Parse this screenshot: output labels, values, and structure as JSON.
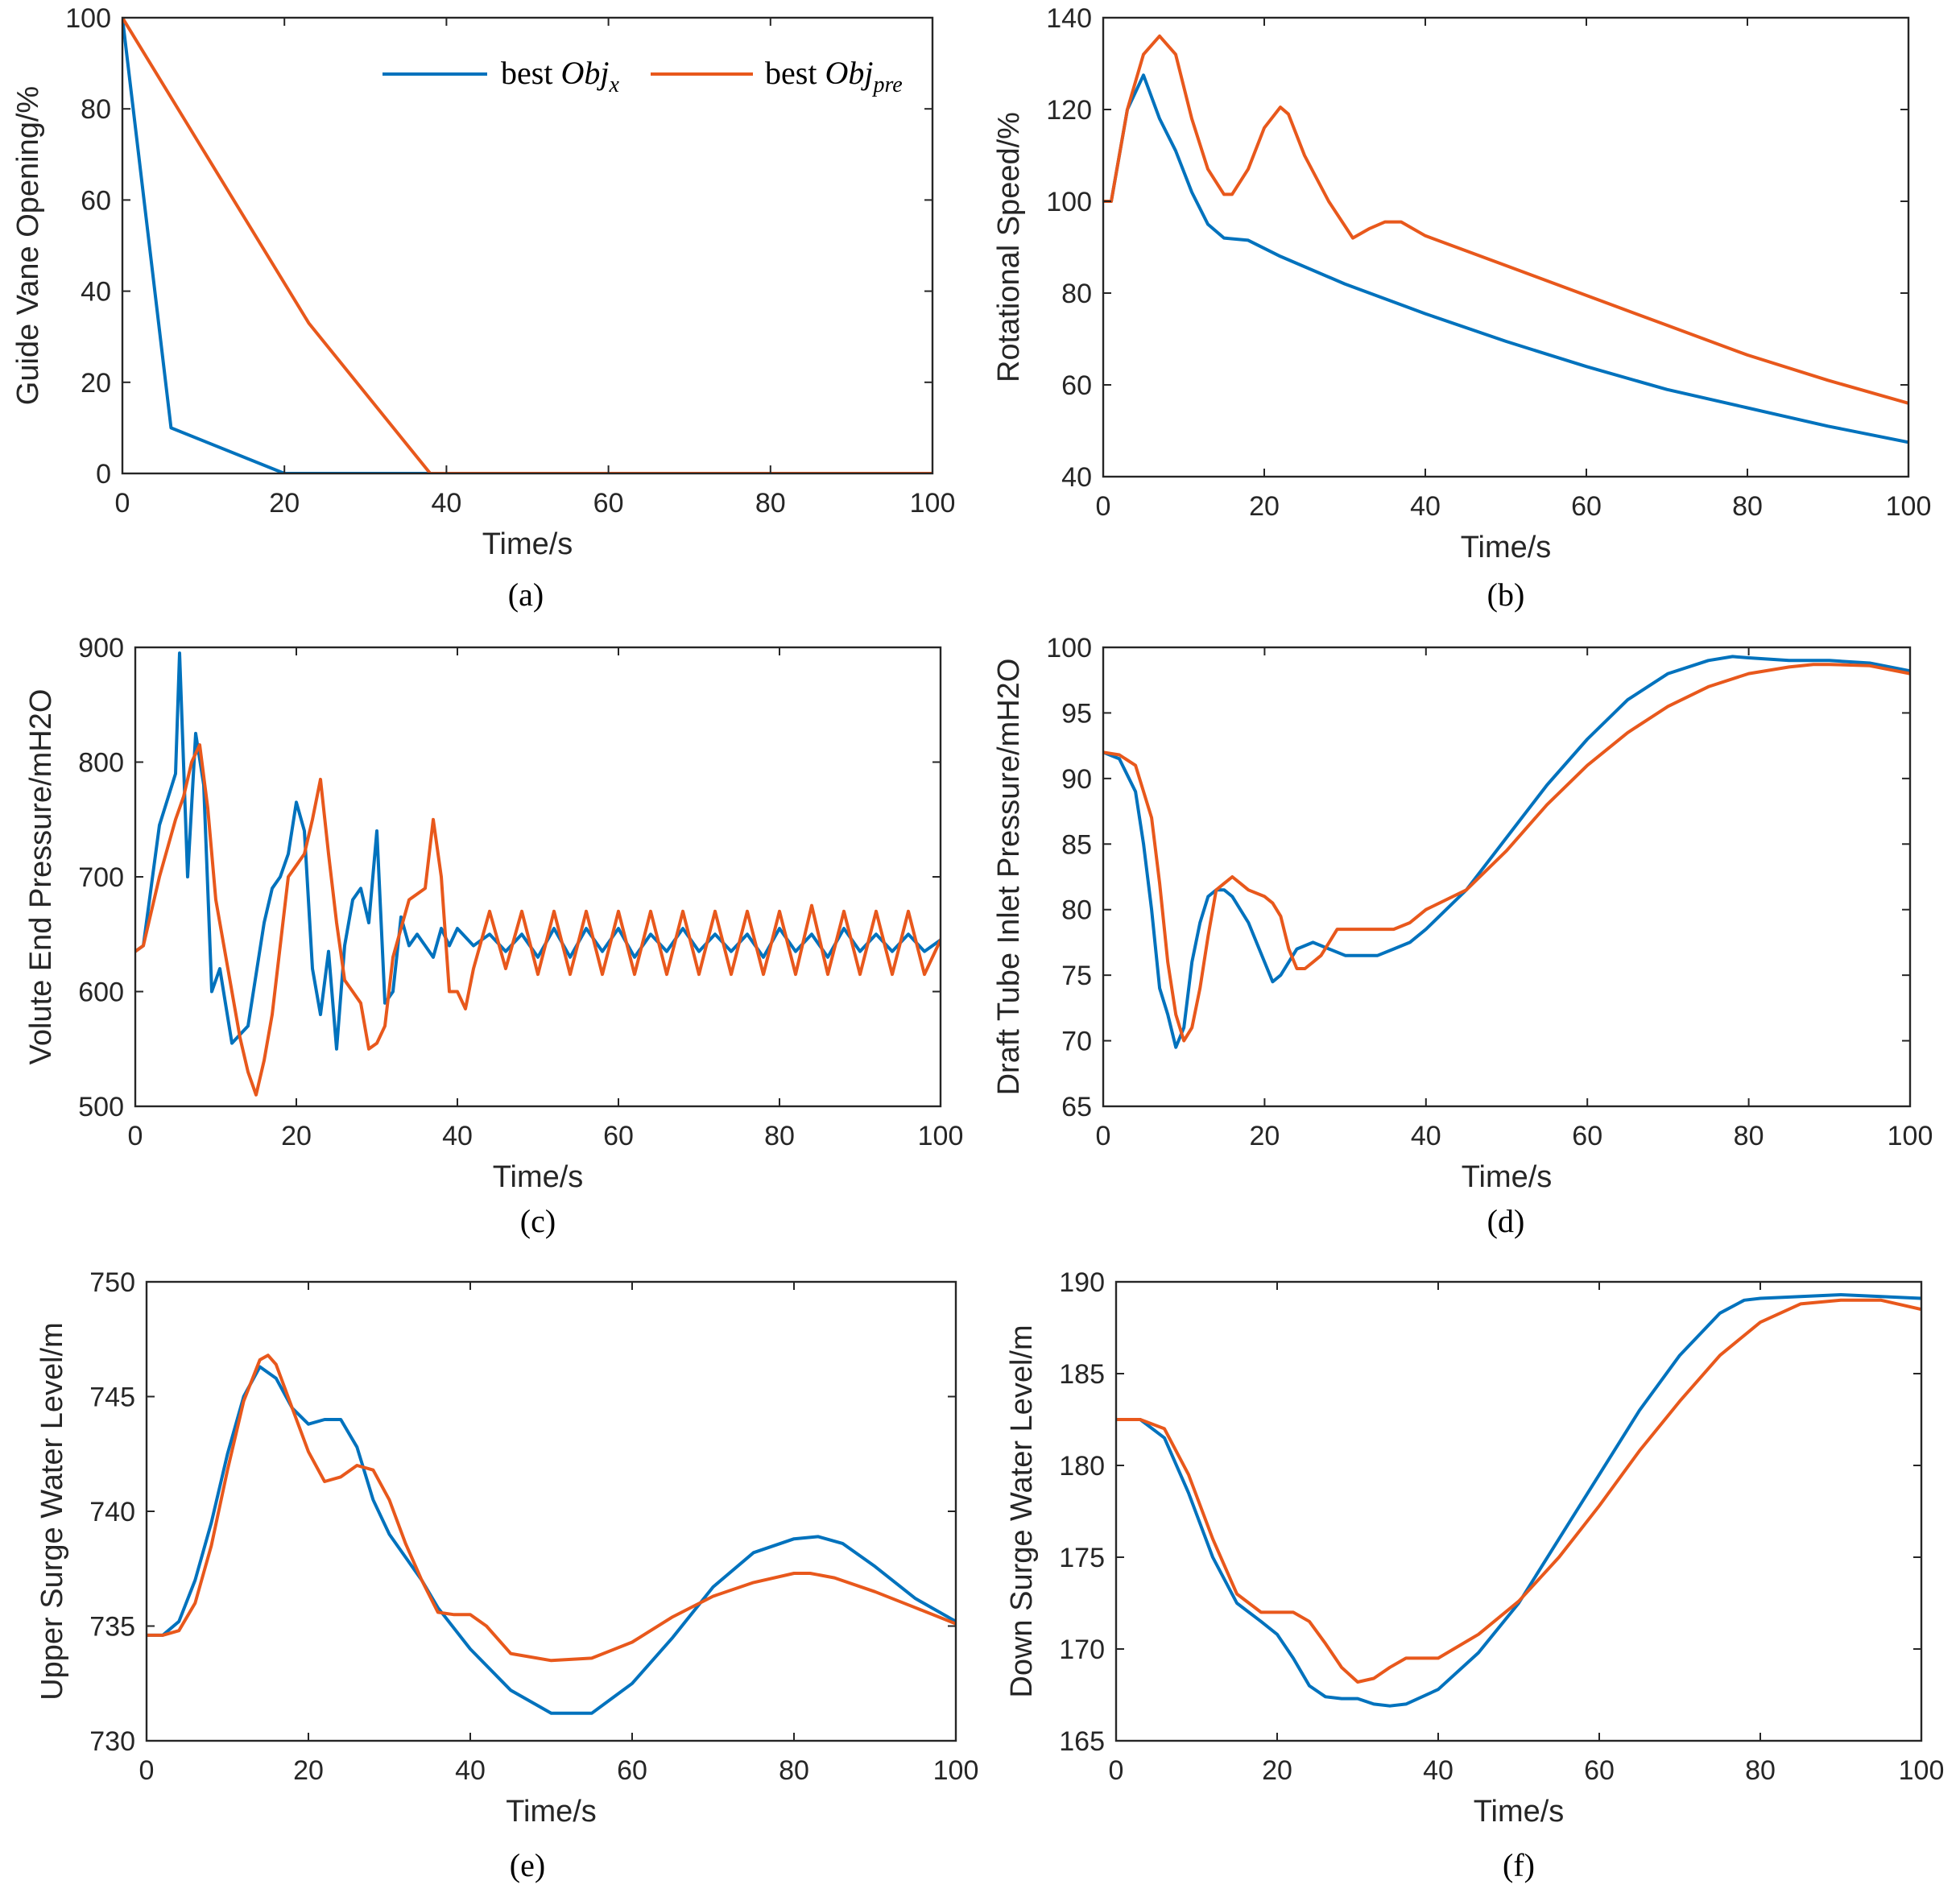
{
  "legend": {
    "series1": {
      "prefix": "best",
      "obj": "Obj",
      "sub": "x"
    },
    "series2": {
      "prefix": "best",
      "obj": "Obj",
      "sub": "pre"
    }
  },
  "colors": {
    "series1": "#0072bd",
    "series2": "#e8581c"
  },
  "chart_data": [
    {
      "id": "a",
      "panel_label": "(a)",
      "type": "line",
      "xlabel": "Time/s",
      "ylabel": "Guide Vane Opening/%",
      "xlim": [
        0,
        100
      ],
      "ylim": [
        0,
        100
      ],
      "xticks": [
        0,
        20,
        40,
        60,
        80,
        100
      ],
      "yticks": [
        0,
        20,
        40,
        60,
        80,
        100
      ],
      "series": [
        {
          "name": "best Obj_x",
          "x": [
            0,
            6,
            20,
            100
          ],
          "y": [
            100,
            10,
            0,
            0
          ]
        },
        {
          "name": "best Obj_pre",
          "x": [
            0,
            23,
            38,
            100
          ],
          "y": [
            100,
            33,
            0,
            0
          ]
        }
      ]
    },
    {
      "id": "b",
      "panel_label": "(b)",
      "type": "line",
      "xlabel": "Time/s",
      "ylabel": "Rotational Speed/%",
      "xlim": [
        0,
        100
      ],
      "ylim": [
        40,
        140
      ],
      "xticks": [
        0,
        20,
        40,
        60,
        80,
        100
      ],
      "yticks": [
        40,
        60,
        80,
        100,
        120,
        140
      ],
      "series": [
        {
          "name": "best Obj_x",
          "x": [
            0,
            1,
            3,
            5,
            7,
            9,
            11,
            13,
            15,
            18,
            22,
            30,
            40,
            50,
            60,
            70,
            80,
            90,
            100
          ],
          "y": [
            100,
            100,
            120,
            127.5,
            118,
            111,
            102,
            95,
            92,
            91.5,
            88,
            82,
            75.5,
            69.5,
            64,
            59,
            55,
            51,
            47.5
          ]
        },
        {
          "name": "best Obj_pre",
          "x": [
            0,
            1,
            3,
            5,
            7,
            9,
            11,
            13,
            15,
            16,
            18,
            20,
            22,
            23,
            25,
            28,
            31,
            33,
            35,
            37,
            40,
            50,
            60,
            70,
            80,
            90,
            100
          ],
          "y": [
            100,
            100,
            120,
            132,
            136,
            132,
            118,
            107,
            101.5,
            101.5,
            107,
            116,
            120.5,
            119,
            110,
            100,
            92,
            94,
            95.5,
            95.5,
            92.5,
            86,
            79.5,
            73,
            66.5,
            61,
            56
          ]
        }
      ]
    },
    {
      "id": "c",
      "panel_label": "(c)",
      "type": "line",
      "xlabel": "Time/s",
      "ylabel": "Volute End Pressure/mH2O",
      "xlim": [
        0,
        100
      ],
      "ylim": [
        500,
        900
      ],
      "xticks": [
        0,
        20,
        40,
        60,
        80,
        100
      ],
      "yticks": [
        500,
        600,
        700,
        800,
        900
      ],
      "series": [
        {
          "name": "best Obj_x",
          "x": [
            0,
            1,
            3,
            5,
            5.5,
            6.5,
            7.5,
            8.5,
            9.5,
            10.5,
            12,
            14,
            16,
            17,
            18,
            19,
            20,
            21,
            22,
            23,
            24,
            25,
            26,
            27,
            28,
            29,
            30,
            31,
            32,
            33,
            34,
            35,
            36,
            37,
            38,
            39,
            40,
            42,
            44,
            46,
            48,
            50,
            52,
            54,
            56,
            58,
            60,
            62,
            64,
            66,
            68,
            70,
            72,
            74,
            76,
            78,
            80,
            82,
            84,
            86,
            88,
            90,
            92,
            94,
            96,
            98,
            100
          ],
          "y": [
            635,
            640,
            745,
            790,
            895,
            700,
            825,
            780,
            600,
            620,
            555,
            570,
            660,
            690,
            700,
            720,
            765,
            740,
            620,
            580,
            635,
            550,
            640,
            680,
            690,
            660,
            740,
            590,
            600,
            665,
            640,
            650,
            640,
            630,
            655,
            640,
            655,
            640,
            650,
            635,
            650,
            630,
            655,
            630,
            655,
            635,
            655,
            630,
            650,
            635,
            655,
            635,
            650,
            635,
            650,
            630,
            655,
            635,
            650,
            630,
            655,
            635,
            650,
            635,
            650,
            635,
            645
          ]
        },
        {
          "name": "best Obj_pre",
          "x": [
            0,
            1,
            3,
            5,
            6,
            7,
            8,
            9,
            10,
            11,
            12,
            13,
            14,
            15,
            16,
            17,
            18,
            19,
            20,
            21,
            22,
            23,
            24,
            25,
            26,
            27,
            28,
            29,
            30,
            31,
            32,
            34,
            36,
            37,
            38,
            39,
            40,
            41,
            42,
            44,
            46,
            48,
            50,
            52,
            54,
            56,
            58,
            60,
            62,
            64,
            66,
            68,
            70,
            72,
            74,
            76,
            78,
            80,
            82,
            84,
            86,
            88,
            90,
            92,
            94,
            96,
            98,
            100
          ],
          "y": [
            635,
            640,
            700,
            750,
            770,
            800,
            815,
            760,
            680,
            640,
            600,
            560,
            530,
            510,
            540,
            580,
            640,
            700,
            710,
            720,
            750,
            785,
            720,
            660,
            610,
            600,
            590,
            550,
            555,
            570,
            630,
            680,
            690,
            750,
            700,
            600,
            600,
            585,
            620,
            670,
            620,
            670,
            615,
            670,
            615,
            670,
            615,
            670,
            615,
            670,
            615,
            670,
            615,
            670,
            615,
            670,
            615,
            670,
            615,
            675,
            615,
            670,
            615,
            670,
            615,
            670,
            615,
            645
          ]
        }
      ]
    },
    {
      "id": "d",
      "panel_label": "(d)",
      "type": "line",
      "xlabel": "Time/s",
      "ylabel": "Draft Tube Inlet Pressure/mH2O",
      "xlim": [
        0,
        100
      ],
      "ylim": [
        65,
        100
      ],
      "xticks": [
        0,
        20,
        40,
        60,
        80,
        100
      ],
      "yticks": [
        65,
        70,
        75,
        80,
        85,
        90,
        95,
        100
      ],
      "series": [
        {
          "name": "best Obj_x",
          "x": [
            0,
            2,
            4,
            5,
            6,
            7,
            8,
            9,
            10,
            11,
            12,
            13,
            14,
            15,
            16,
            18,
            20,
            21,
            22,
            24,
            26,
            28,
            30,
            32,
            34,
            36,
            38,
            40,
            45,
            50,
            55,
            60,
            65,
            70,
            75,
            78,
            80,
            85,
            90,
            95,
            100
          ],
          "y": [
            92,
            91.5,
            89,
            85,
            80,
            74,
            72,
            69.5,
            71,
            76,
            79,
            81,
            81.5,
            81.5,
            81,
            79,
            76,
            74.5,
            75,
            77,
            77.5,
            77,
            76.5,
            76.5,
            76.5,
            77,
            77.5,
            78.5,
            81.5,
            85.5,
            89.5,
            93,
            96,
            98,
            99,
            99.3,
            99.2,
            99,
            99,
            98.8,
            98.2
          ]
        },
        {
          "name": "best Obj_pre",
          "x": [
            0,
            2,
            4,
            6,
            7,
            8,
            9,
            10,
            11,
            12,
            13,
            14,
            15,
            16,
            17,
            18,
            20,
            21,
            22,
            23,
            24,
            25,
            26,
            27,
            28,
            29,
            30,
            32,
            34,
            36,
            38,
            40,
            45,
            50,
            55,
            60,
            65,
            70,
            75,
            80,
            85,
            88,
            90,
            95,
            100
          ],
          "y": [
            92,
            91.8,
            91,
            87,
            82,
            76,
            72,
            70,
            71,
            74,
            78,
            81.5,
            82,
            82.5,
            82,
            81.5,
            81,
            80.5,
            79.5,
            77,
            75.5,
            75.5,
            76,
            76.5,
            77.5,
            78.5,
            78.5,
            78.5,
            78.5,
            78.5,
            79,
            80,
            81.5,
            84.5,
            88,
            91,
            93.5,
            95.5,
            97,
            98,
            98.5,
            98.7,
            98.7,
            98.6,
            98
          ]
        }
      ]
    },
    {
      "id": "e",
      "panel_label": "(e)",
      "type": "line",
      "xlabel": "Time/s",
      "ylabel": "Upper Surge Water Level/m",
      "xlim": [
        0,
        100
      ],
      "ylim": [
        730,
        750
      ],
      "xticks": [
        0,
        20,
        40,
        60,
        80,
        100
      ],
      "yticks": [
        730,
        735,
        740,
        745,
        750
      ],
      "series": [
        {
          "name": "best Obj_x",
          "x": [
            0,
            2,
            4,
            6,
            8,
            10,
            12,
            14,
            16,
            18,
            20,
            22,
            24,
            26,
            28,
            30,
            32,
            34,
            36,
            40,
            45,
            50,
            55,
            60,
            65,
            70,
            75,
            80,
            83,
            86,
            90,
            95,
            100
          ],
          "y": [
            734.6,
            734.6,
            735.2,
            737,
            739.5,
            742.5,
            745,
            746.3,
            745.8,
            744.5,
            743.8,
            744,
            744,
            742.8,
            740.5,
            739,
            738,
            737,
            735.8,
            734,
            732.2,
            731.2,
            731.2,
            732.5,
            734.5,
            736.7,
            738.2,
            738.8,
            738.9,
            738.6,
            737.6,
            736.2,
            735.2
          ]
        },
        {
          "name": "best Obj_pre",
          "x": [
            0,
            2,
            4,
            6,
            8,
            10,
            12,
            14,
            15,
            16,
            18,
            20,
            22,
            24,
            26,
            28,
            30,
            32,
            34,
            36,
            38,
            40,
            42,
            45,
            50,
            55,
            60,
            65,
            70,
            75,
            80,
            82,
            85,
            90,
            95,
            100
          ],
          "y": [
            734.6,
            734.6,
            734.8,
            736,
            738.5,
            741.8,
            744.8,
            746.6,
            746.8,
            746.4,
            744.5,
            742.6,
            741.3,
            741.5,
            742,
            741.8,
            740.5,
            738.6,
            737,
            735.6,
            735.5,
            735.5,
            735,
            733.8,
            733.5,
            733.6,
            734.3,
            735.4,
            736.3,
            736.9,
            737.3,
            737.3,
            737.1,
            736.5,
            735.8,
            735.1
          ]
        }
      ]
    },
    {
      "id": "f",
      "panel_label": "(f)",
      "type": "line",
      "xlabel": "Time/s",
      "ylabel": "Down Surge Water Level/m",
      "xlim": [
        0,
        100
      ],
      "ylim": [
        165,
        190
      ],
      "xticks": [
        0,
        20,
        40,
        60,
        80,
        100
      ],
      "yticks": [
        165,
        170,
        175,
        180,
        185,
        190
      ],
      "series": [
        {
          "name": "best Obj_x",
          "x": [
            0,
            3,
            6,
            9,
            12,
            15,
            18,
            20,
            22,
            24,
            26,
            28,
            30,
            32,
            34,
            36,
            40,
            45,
            50,
            55,
            60,
            65,
            70,
            75,
            78,
            80,
            85,
            90,
            95,
            100
          ],
          "y": [
            182.5,
            182.5,
            181.5,
            178.5,
            175,
            172.5,
            171.5,
            170.8,
            169.5,
            168,
            167.4,
            167.3,
            167.3,
            167,
            166.9,
            167,
            167.8,
            169.8,
            172.5,
            176,
            179.5,
            183,
            186,
            188.3,
            189,
            189.1,
            189.2,
            189.3,
            189.2,
            189.1
          ]
        },
        {
          "name": "best Obj_pre",
          "x": [
            0,
            3,
            6,
            9,
            12,
            15,
            18,
            20,
            22,
            24,
            26,
            28,
            30,
            32,
            34,
            36,
            38,
            40,
            45,
            50,
            55,
            60,
            65,
            70,
            75,
            80,
            85,
            90,
            95,
            100
          ],
          "y": [
            182.5,
            182.5,
            182,
            179.5,
            176,
            173,
            172,
            172,
            172,
            171.5,
            170.3,
            169,
            168.2,
            168.4,
            169,
            169.5,
            169.5,
            169.5,
            170.8,
            172.6,
            175,
            177.8,
            180.8,
            183.5,
            186,
            187.8,
            188.8,
            189,
            189,
            188.5
          ]
        }
      ]
    }
  ]
}
